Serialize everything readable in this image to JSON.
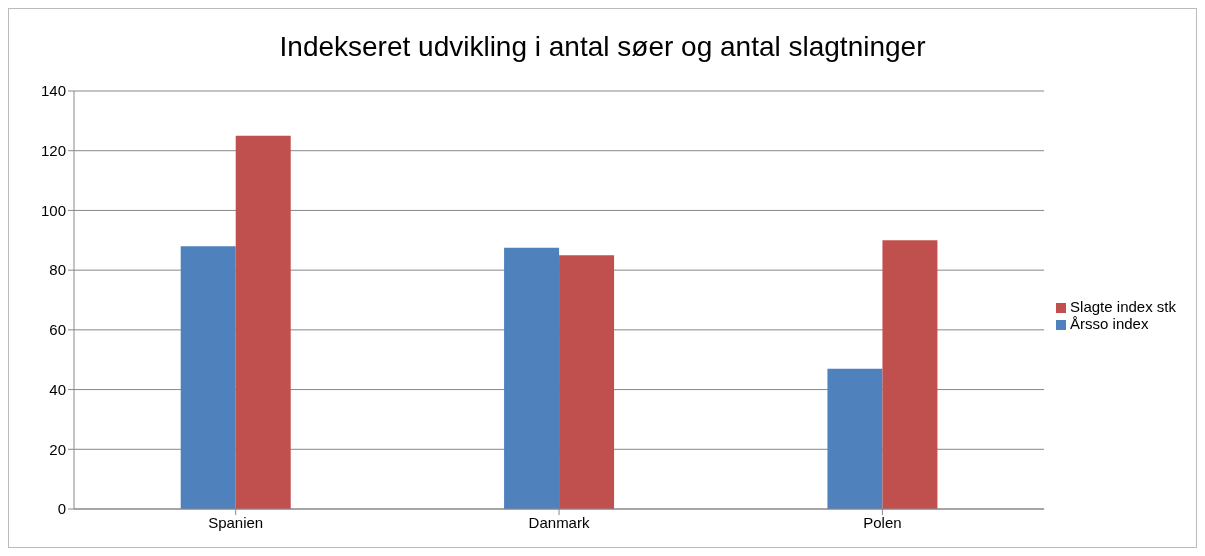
{
  "chart_data": {
    "type": "bar",
    "title": "Indekseret udvikling i antal søer og antal slagtninger",
    "categories": [
      "Spanien",
      "Danmark",
      "Polen"
    ],
    "series": [
      {
        "name": "Årsso index",
        "color": "#4f81bd",
        "values": [
          88,
          87.5,
          47
        ]
      },
      {
        "name": "Slagte index stk",
        "color": "#c0504d",
        "values": [
          125,
          85,
          90
        ]
      }
    ],
    "ylim": [
      0,
      140
    ],
    "yticks": [
      0,
      20,
      40,
      60,
      80,
      100,
      120,
      140
    ],
    "grid": "y",
    "legend": "right"
  }
}
